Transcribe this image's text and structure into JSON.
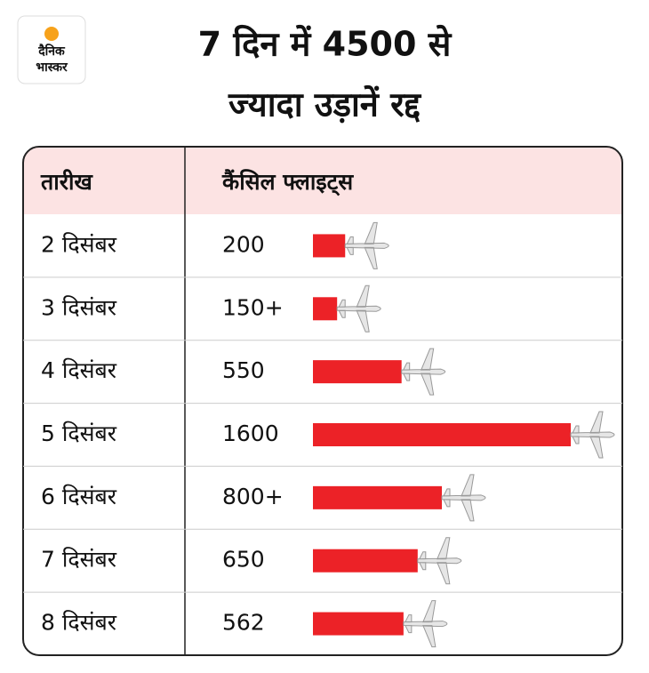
{
  "chart_data": {
    "type": "hbar",
    "logo": [
      "दैनिक",
      "भास्कर"
    ],
    "title": [
      "7 दिन में 4500 से",
      "ज्यादा उड़ानें रद्द"
    ],
    "headers": [
      "तारीख",
      "कैंसिल फ्लाइट्स"
    ],
    "categories": [
      "2 दिसंबर",
      "3 दिसंबर",
      "4 दिसंबर",
      "5 दिसंबर",
      "6 दिसंबर",
      "7 दिसंबर",
      "8 दिसंबर"
    ],
    "values": [
      200,
      150,
      550,
      1600,
      800,
      650,
      562
    ],
    "value_labels": [
      "200",
      "150+",
      "550",
      "1600",
      "800+",
      "650",
      "562"
    ],
    "color": "#ec2227"
  }
}
